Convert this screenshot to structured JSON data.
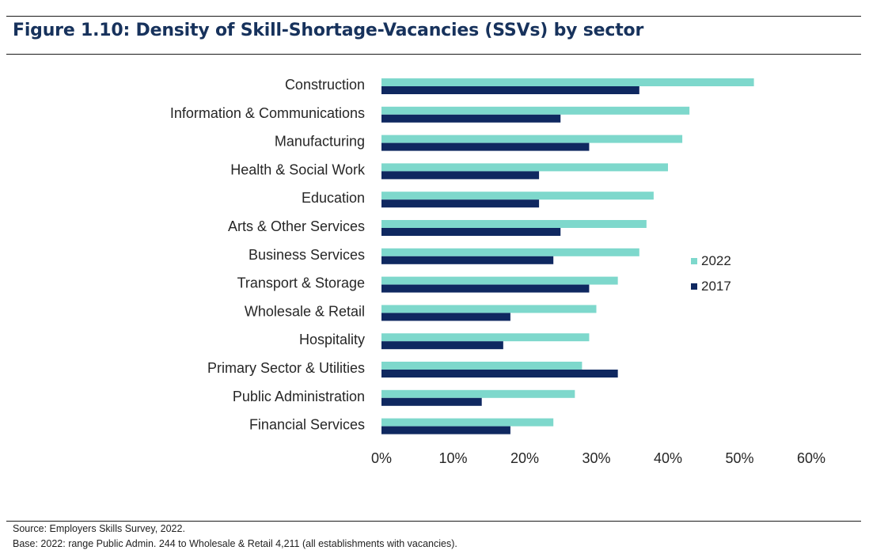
{
  "header": {
    "title": "Figure 1.10: Density of Skill-Shortage-Vacancies (SSVs) by sector"
  },
  "footer": {
    "source": "Source: Employers Skills Survey, 2022.",
    "base": "Base: 2022: range Public Admin. 244 to Wholesale & Retail 4,211 (all establishments with vacancies)."
  },
  "chart_data": {
    "type": "bar",
    "orientation": "horizontal",
    "title": "Figure 1.10: Density of Skill-Shortage-Vacancies (SSVs) by sector",
    "categories": [
      "Construction",
      "Information & Communications",
      "Manufacturing",
      "Health & Social Work",
      "Education",
      "Arts & Other Services",
      "Business Services",
      "Transport & Storage",
      "Wholesale & Retail",
      "Hospitality",
      "Primary Sector & Utilities",
      "Public Administration",
      "Financial Services"
    ],
    "series": [
      {
        "name": "2022",
        "color": "#7ed8cc",
        "values": [
          52,
          43,
          42,
          40,
          38,
          37,
          36,
          33,
          30,
          29,
          28,
          27,
          24
        ]
      },
      {
        "name": "2017",
        "color": "#0f2860",
        "values": [
          36,
          25,
          29,
          22,
          22,
          25,
          24,
          29,
          18,
          17,
          33,
          14,
          18
        ]
      }
    ],
    "xlim": [
      0,
      60
    ],
    "xticks": [
      "0%",
      "10%",
      "20%",
      "30%",
      "40%",
      "50%",
      "60%"
    ],
    "xlabel": "",
    "ylabel": "",
    "legend": "right",
    "grid": false
  }
}
